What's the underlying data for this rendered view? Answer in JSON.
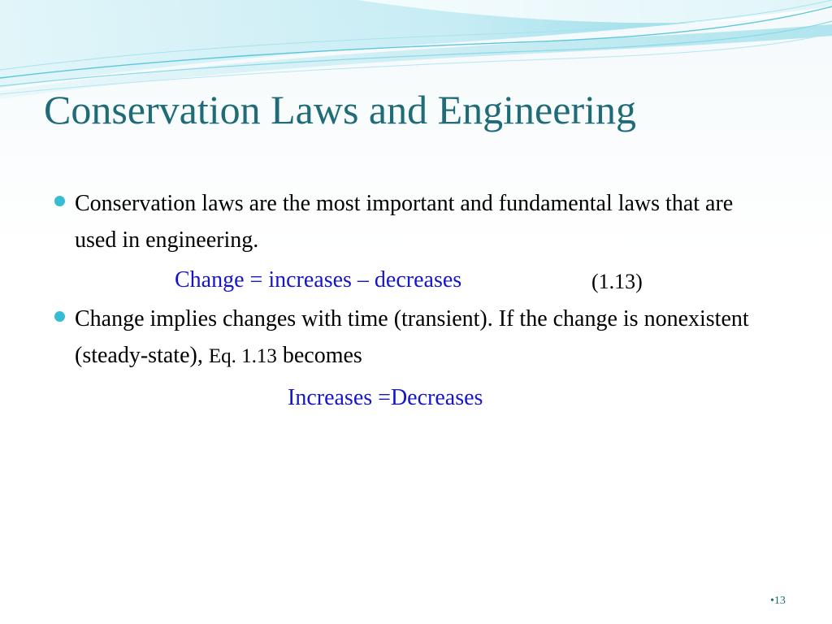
{
  "slide": {
    "title": "Conservation Laws and Engineering",
    "bullets": [
      {
        "text": "Conservation laws are the most important and fundamental laws that are used in engineering."
      },
      {
        "text_main": "Change implies changes with time (transient). If the change is nonexistent (steady-state),",
        "text_small": "Eq. 1.13",
        "text_end": "becomes"
      }
    ],
    "equation_1": {
      "text": "Change = increases – decreases",
      "number": "(1.13)"
    },
    "equation_2": {
      "text": "Increases =Decreases"
    },
    "page_number": "•13"
  },
  "colors": {
    "title": "#1f6b78",
    "bullet": "#37bdd3",
    "equation": "#1515cc",
    "wave_light": "#c9eef5",
    "wave_dark": "#5cc6da"
  },
  "icons": {
    "bullet": "filled-circle-bullet-icon"
  }
}
